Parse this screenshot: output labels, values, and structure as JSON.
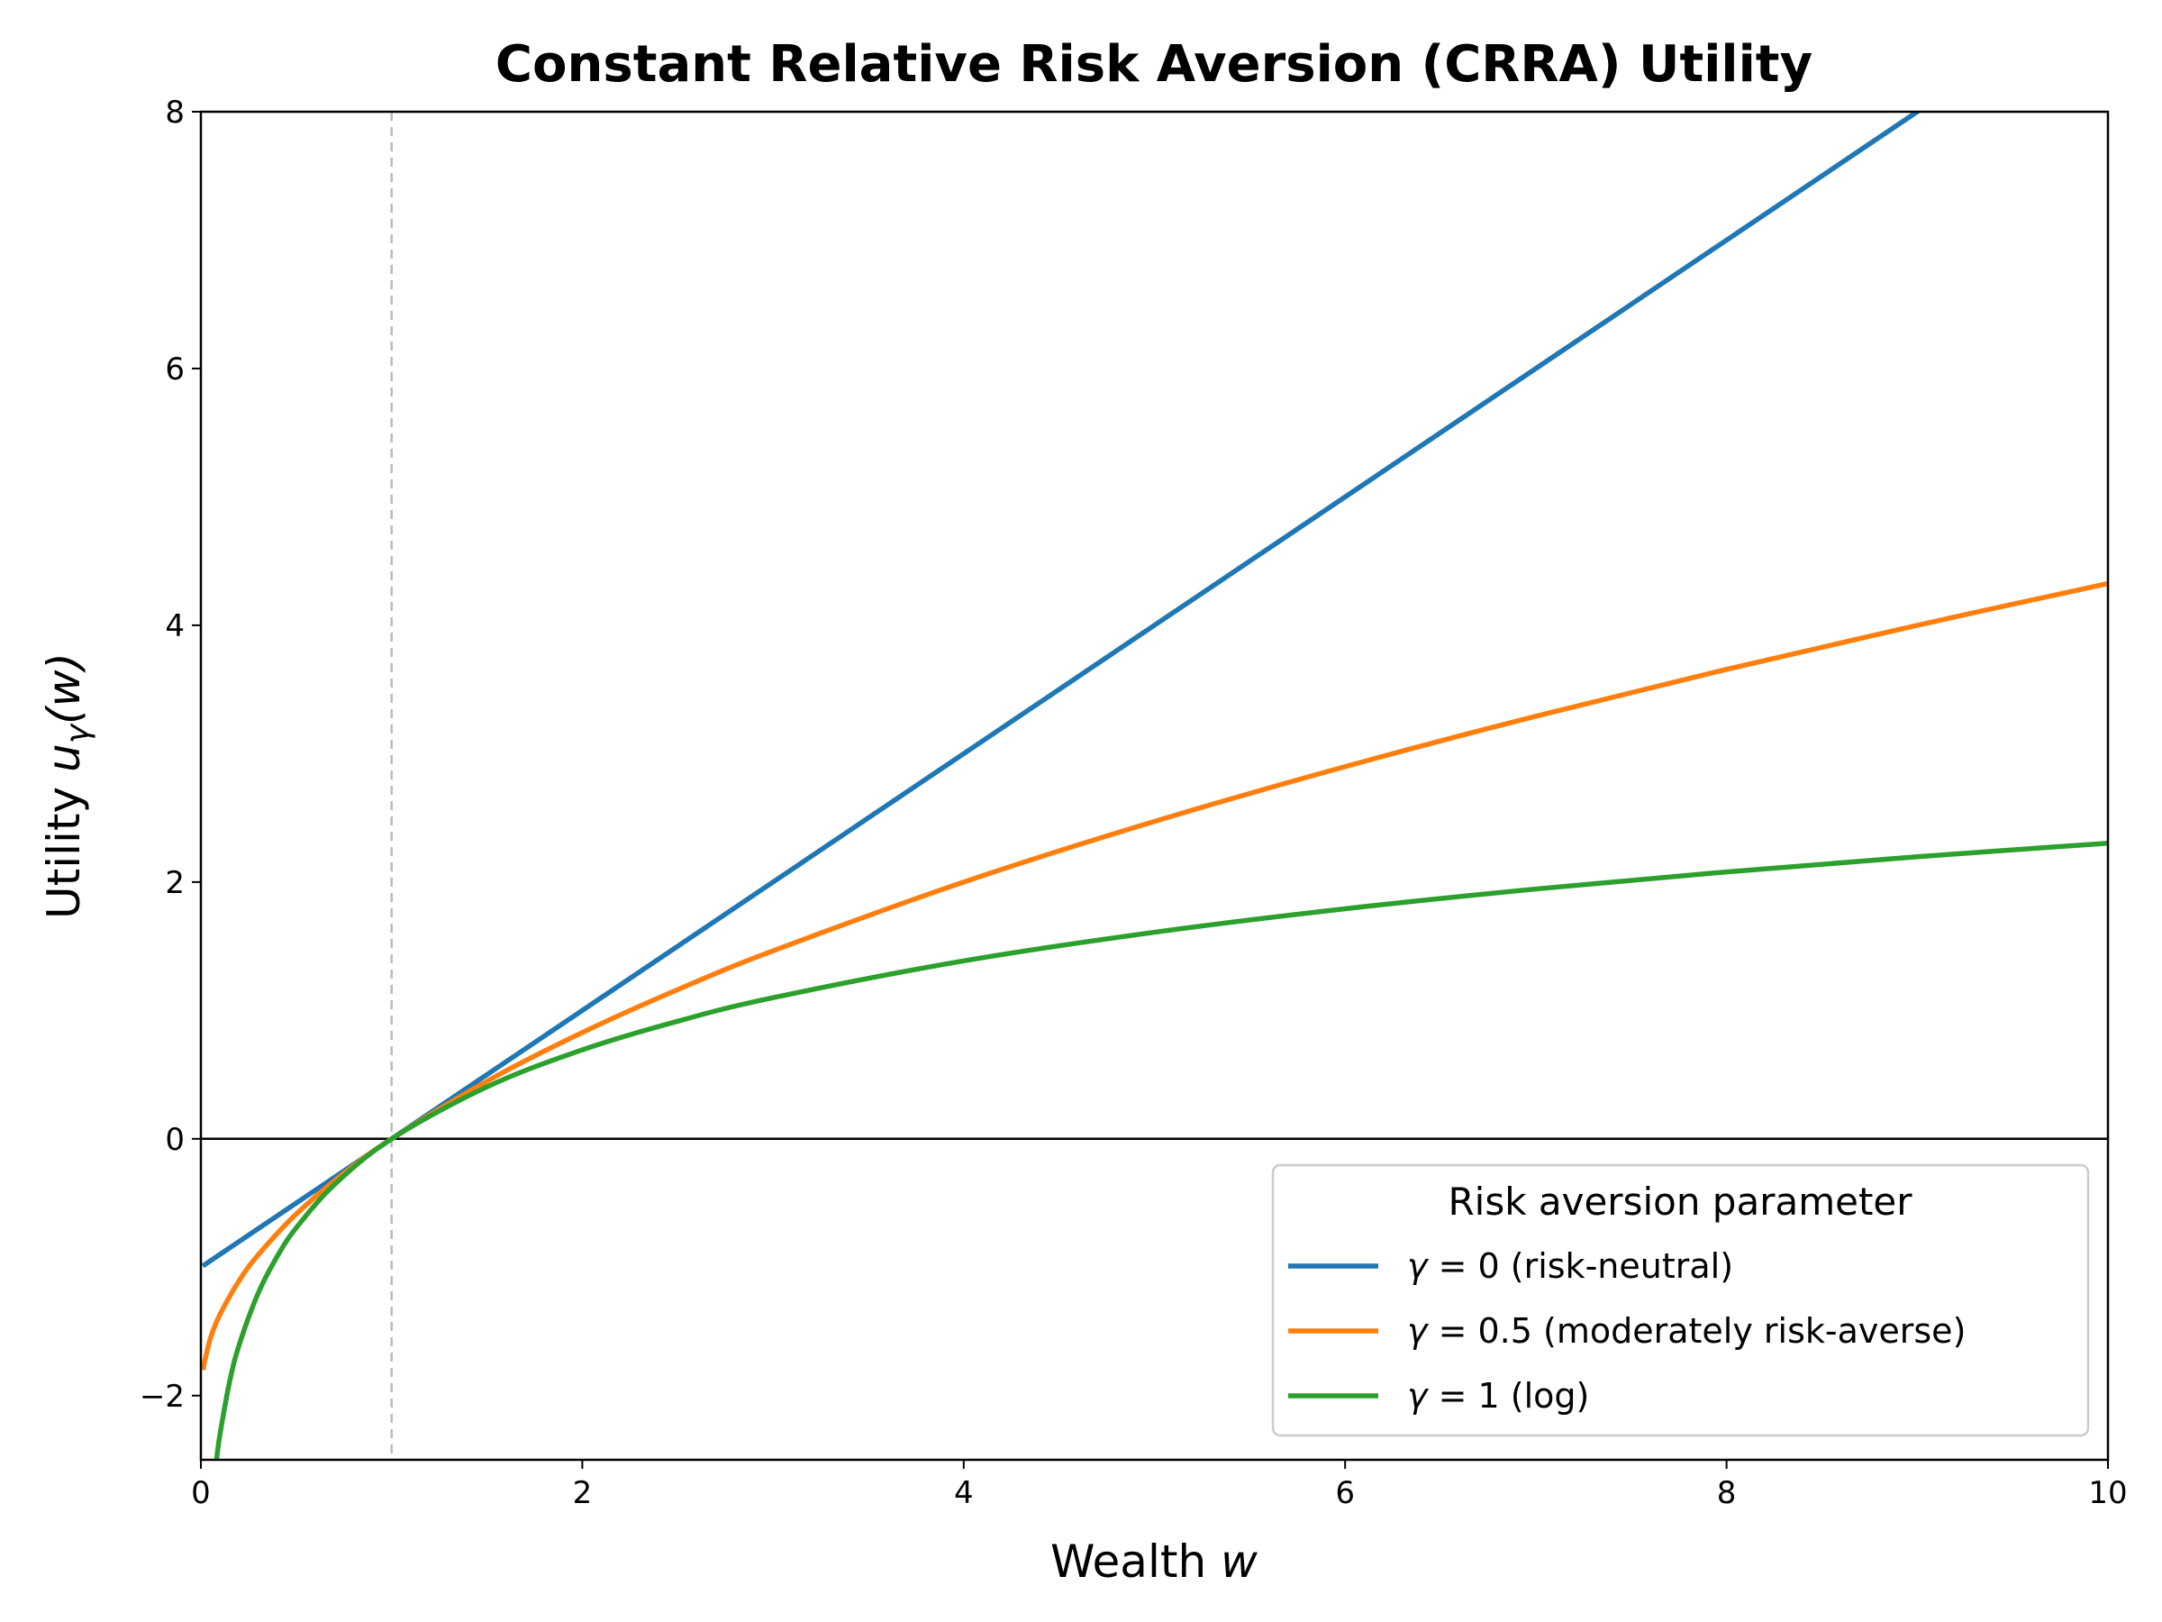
{
  "chart_data": {
    "type": "line",
    "title": "Constant Relative Risk Aversion (CRRA) Utility",
    "xlabel": "Wealth",
    "xlabel_var": "w",
    "ylabel": "Utility",
    "ylabel_var": "u",
    "ylabel_sub": "γ",
    "ylabel_arg": "(w)",
    "xlim": [
      0,
      10
    ],
    "ylim": [
      -2.5,
      8
    ],
    "xticks": [
      0,
      2,
      4,
      6,
      8,
      10
    ],
    "yticks": [
      -2,
      0,
      2,
      4,
      6,
      8
    ],
    "ytick_labels": [
      "−2",
      "0",
      "2",
      "4",
      "6",
      "8"
    ],
    "grid": false,
    "reference_lines": {
      "horizontal_y": 0,
      "horizontal_color": "#000000",
      "vertical_x": 1,
      "vertical_color": "#bbbbbb",
      "vertical_style": "dashed"
    },
    "legend": {
      "title": "Risk aversion parameter",
      "placement": "lower-right"
    },
    "series": [
      {
        "name": "γ = 0 (risk-neutral)",
        "gamma": "0",
        "desc": "(risk-neutral)",
        "color": "#1f77b4",
        "x": [
          0.01,
          1,
          2,
          3,
          4,
          5,
          6,
          7,
          8,
          9,
          10
        ],
        "y": [
          -0.99,
          0,
          1,
          2,
          3,
          4,
          5,
          6,
          7,
          8,
          9
        ]
      },
      {
        "name": "γ = 0.5 (moderately risk-averse)",
        "gamma": "0.5",
        "desc": "(moderately risk-averse)",
        "color": "#ff7f0e",
        "x": [
          0.01,
          0.05,
          0.1,
          0.2,
          0.3,
          0.5,
          0.75,
          1,
          1.5,
          2,
          2.5,
          3,
          4,
          5,
          6,
          7,
          8,
          9,
          10
        ],
        "y": [
          -1.8,
          -1.553,
          -1.368,
          -1.106,
          -0.905,
          -0.586,
          -0.268,
          0,
          0.449,
          0.828,
          1.162,
          1.464,
          2.0,
          2.472,
          2.899,
          3.292,
          3.657,
          4.0,
          4.325
        ]
      },
      {
        "name": "γ = 1 (log)",
        "gamma": "1",
        "desc": "(log)",
        "color": "#2ca02c",
        "x": [
          0.082,
          0.1,
          0.15,
          0.2,
          0.3,
          0.4,
          0.5,
          0.7,
          1,
          1.5,
          2,
          2.5,
          3,
          4,
          5,
          6,
          7,
          8,
          9,
          10
        ],
        "y": [
          -2.5,
          -2.303,
          -1.897,
          -1.609,
          -1.204,
          -0.916,
          -0.693,
          -0.357,
          0,
          0.405,
          0.693,
          0.916,
          1.099,
          1.386,
          1.609,
          1.792,
          1.946,
          2.079,
          2.197,
          2.303
        ]
      }
    ]
  }
}
